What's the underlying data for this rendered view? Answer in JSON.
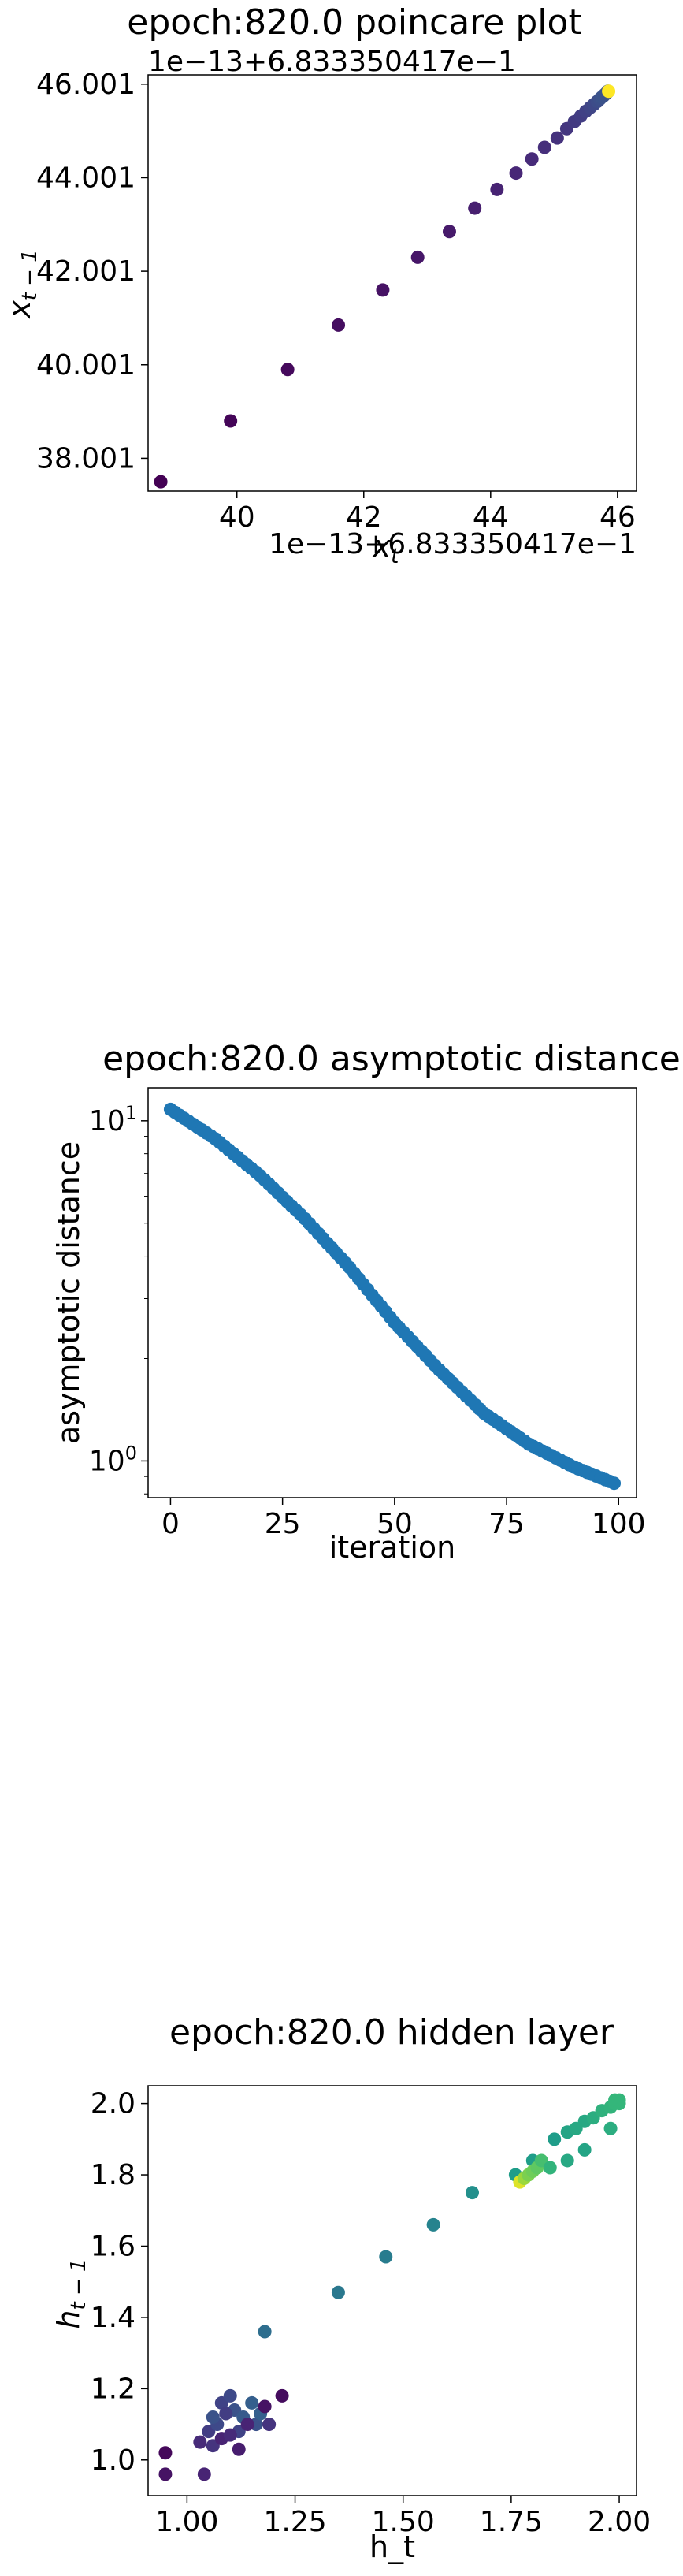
{
  "charts": [
    {
      "type": "scatter",
      "title": "epoch:820.0 poincare plot",
      "xlabel": "x_t",
      "ylabel": "x_{t-1}",
      "x_offset_text": "1e−13+6.833350417e−1",
      "y_offset_text": "1e−13+6.833350417e−1",
      "xlim": [
        38.6,
        46.3
      ],
      "ylim": [
        37.3,
        46.2
      ],
      "x_ticks": [
        "40",
        "42",
        "44",
        "46"
      ],
      "y_ticks": [
        "38.001",
        "40.001",
        "42.001",
        "44.001",
        "46.001"
      ],
      "colormap": "viridis",
      "color_range": [
        "#440154",
        "#fde725"
      ],
      "points": [
        [
          38.8,
          37.5
        ],
        [
          39.9,
          38.8
        ],
        [
          40.8,
          39.9
        ],
        [
          41.6,
          40.85
        ],
        [
          42.3,
          41.6
        ],
        [
          42.85,
          42.3
        ],
        [
          43.35,
          42.85
        ],
        [
          43.75,
          43.35
        ],
        [
          44.1,
          43.75
        ],
        [
          44.4,
          44.1
        ],
        [
          44.65,
          44.4
        ],
        [
          44.85,
          44.65
        ],
        [
          45.05,
          44.85
        ],
        [
          45.2,
          45.05
        ],
        [
          45.32,
          45.2
        ],
        [
          45.42,
          45.32
        ],
        [
          45.5,
          45.42
        ],
        [
          45.57,
          45.5
        ],
        [
          45.63,
          45.57
        ],
        [
          45.68,
          45.63
        ],
        [
          45.72,
          45.68
        ],
        [
          45.75,
          45.72
        ],
        [
          45.78,
          45.75
        ],
        [
          45.8,
          45.78
        ],
        [
          45.82,
          45.8
        ],
        [
          45.83,
          45.82
        ],
        [
          45.84,
          45.83
        ],
        [
          45.85,
          45.84
        ],
        [
          45.85,
          45.85
        ],
        [
          45.86,
          45.85
        ]
      ]
    },
    {
      "type": "scatter",
      "title": "epoch:820.0 asymptotic distance",
      "xlabel": "iteration",
      "ylabel": "asymptotic distance",
      "y_scale": "log",
      "xlim": [
        -5,
        104
      ],
      "ylim": [
        0.78,
        12.5
      ],
      "x_ticks": [
        "0",
        "25",
        "50",
        "75",
        "100"
      ],
      "y_ticks": [
        "10⁰",
        "10¹"
      ],
      "color": "#1f77b4",
      "key_points": [
        [
          0,
          10.8
        ],
        [
          10,
          8.85
        ],
        [
          20,
          6.9
        ],
        [
          30,
          5.15
        ],
        [
          40,
          3.7
        ],
        [
          50,
          2.55
        ],
        [
          60,
          1.85
        ],
        [
          70,
          1.38
        ],
        [
          80,
          1.12
        ],
        [
          90,
          0.96
        ],
        [
          99,
          0.86
        ]
      ]
    },
    {
      "type": "scatter",
      "title": "epoch:820.0 hidden layer",
      "xlabel": "h_t",
      "ylabel": "h_{t-1}",
      "xlim": [
        0.91,
        2.04
      ],
      "ylim": [
        0.9,
        2.05
      ],
      "x_ticks": [
        "1.00",
        "1.25",
        "1.50",
        "1.75",
        "2.00"
      ],
      "y_ticks": [
        "1.0",
        "1.2",
        "1.4",
        "1.6",
        "1.8",
        "2.0"
      ],
      "colormap": "viridis",
      "points": [
        [
          0.95,
          1.02,
          0.02
        ],
        [
          0.95,
          0.96,
          0.05
        ],
        [
          1.04,
          0.96,
          0.1
        ],
        [
          1.03,
          1.05,
          0.12
        ],
        [
          1.05,
          1.08,
          0.18
        ],
        [
          1.06,
          1.04,
          0.15
        ],
        [
          1.08,
          1.06,
          0.1
        ],
        [
          1.08,
          1.16,
          0.2
        ],
        [
          1.1,
          1.18,
          0.22
        ],
        [
          1.11,
          1.14,
          0.25
        ],
        [
          1.12,
          1.08,
          0.2
        ],
        [
          1.13,
          1.12,
          0.28
        ],
        [
          1.15,
          1.16,
          0.3
        ],
        [
          1.16,
          1.1,
          0.25
        ],
        [
          1.17,
          1.13,
          0.3
        ],
        [
          1.07,
          1.1,
          0.22
        ],
        [
          1.09,
          1.13,
          0.18
        ],
        [
          1.1,
          1.07,
          0.12
        ],
        [
          1.14,
          1.1,
          0.1
        ],
        [
          1.18,
          1.15,
          0.05
        ],
        [
          1.22,
          1.18,
          0.03
        ],
        [
          1.12,
          1.03,
          0.08
        ],
        [
          1.19,
          1.1,
          0.15
        ],
        [
          1.06,
          1.12,
          0.25
        ],
        [
          1.18,
          1.36,
          0.36
        ],
        [
          1.35,
          1.47,
          0.4
        ],
        [
          1.46,
          1.57,
          0.42
        ],
        [
          1.57,
          1.66,
          0.45
        ],
        [
          1.66,
          1.75,
          0.5
        ],
        [
          1.76,
          1.8,
          0.55
        ],
        [
          1.8,
          1.84,
          0.55
        ],
        [
          1.77,
          1.78,
          0.95
        ],
        [
          1.78,
          1.79,
          0.85
        ],
        [
          1.79,
          1.8,
          0.8
        ],
        [
          1.8,
          1.81,
          0.78
        ],
        [
          1.81,
          1.82,
          0.75
        ],
        [
          1.82,
          1.84,
          0.7
        ],
        [
          1.84,
          1.82,
          0.65
        ],
        [
          1.88,
          1.84,
          0.6
        ],
        [
          1.92,
          1.87,
          0.58
        ],
        [
          1.85,
          1.9,
          0.55
        ],
        [
          1.88,
          1.92,
          0.58
        ],
        [
          1.9,
          1.93,
          0.6
        ],
        [
          1.92,
          1.95,
          0.6
        ],
        [
          1.94,
          1.96,
          0.62
        ],
        [
          1.96,
          1.98,
          0.64
        ],
        [
          1.98,
          1.99,
          0.65
        ],
        [
          1.99,
          2.0,
          0.66
        ],
        [
          2.0,
          2.0,
          0.66
        ],
        [
          1.99,
          2.01,
          0.66
        ],
        [
          2.0,
          2.01,
          0.66
        ],
        [
          1.98,
          1.93,
          0.62
        ]
      ]
    }
  ]
}
